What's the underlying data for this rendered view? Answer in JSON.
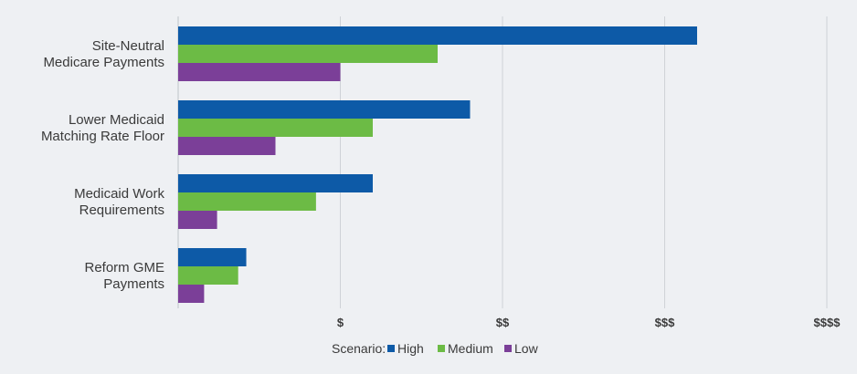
{
  "chart_data": {
    "type": "bar",
    "orientation": "horizontal",
    "categories": [
      [
        "Site-Neutral",
        "Medicare Payments"
      ],
      [
        "Lower Medicaid",
        "Matching Rate Floor"
      ],
      [
        "Medicaid Work",
        "Requirements"
      ],
      [
        "Reform GME",
        "Payments"
      ]
    ],
    "series": [
      {
        "name": "High",
        "color": "#0d5aa7",
        "values": [
          3.2,
          1.8,
          1.2,
          0.42
        ]
      },
      {
        "name": "Medium",
        "color": "#6cbb45",
        "values": [
          1.6,
          1.2,
          0.85,
          0.37
        ]
      },
      {
        "name": "Low",
        "color": "#7b3f98",
        "values": [
          1.0,
          0.6,
          0.24,
          0.16
        ]
      }
    ],
    "x_ticks": [
      {
        "value": 0,
        "label": ""
      },
      {
        "value": 1,
        "label": "$"
      },
      {
        "value": 2,
        "label": "$$"
      },
      {
        "value": 3,
        "label": "$$$"
      },
      {
        "value": 4,
        "label": "$$$$"
      }
    ],
    "xlim": [
      0,
      4
    ],
    "grid": true,
    "legend_title": "Scenario:",
    "legend_position": "bottom"
  }
}
